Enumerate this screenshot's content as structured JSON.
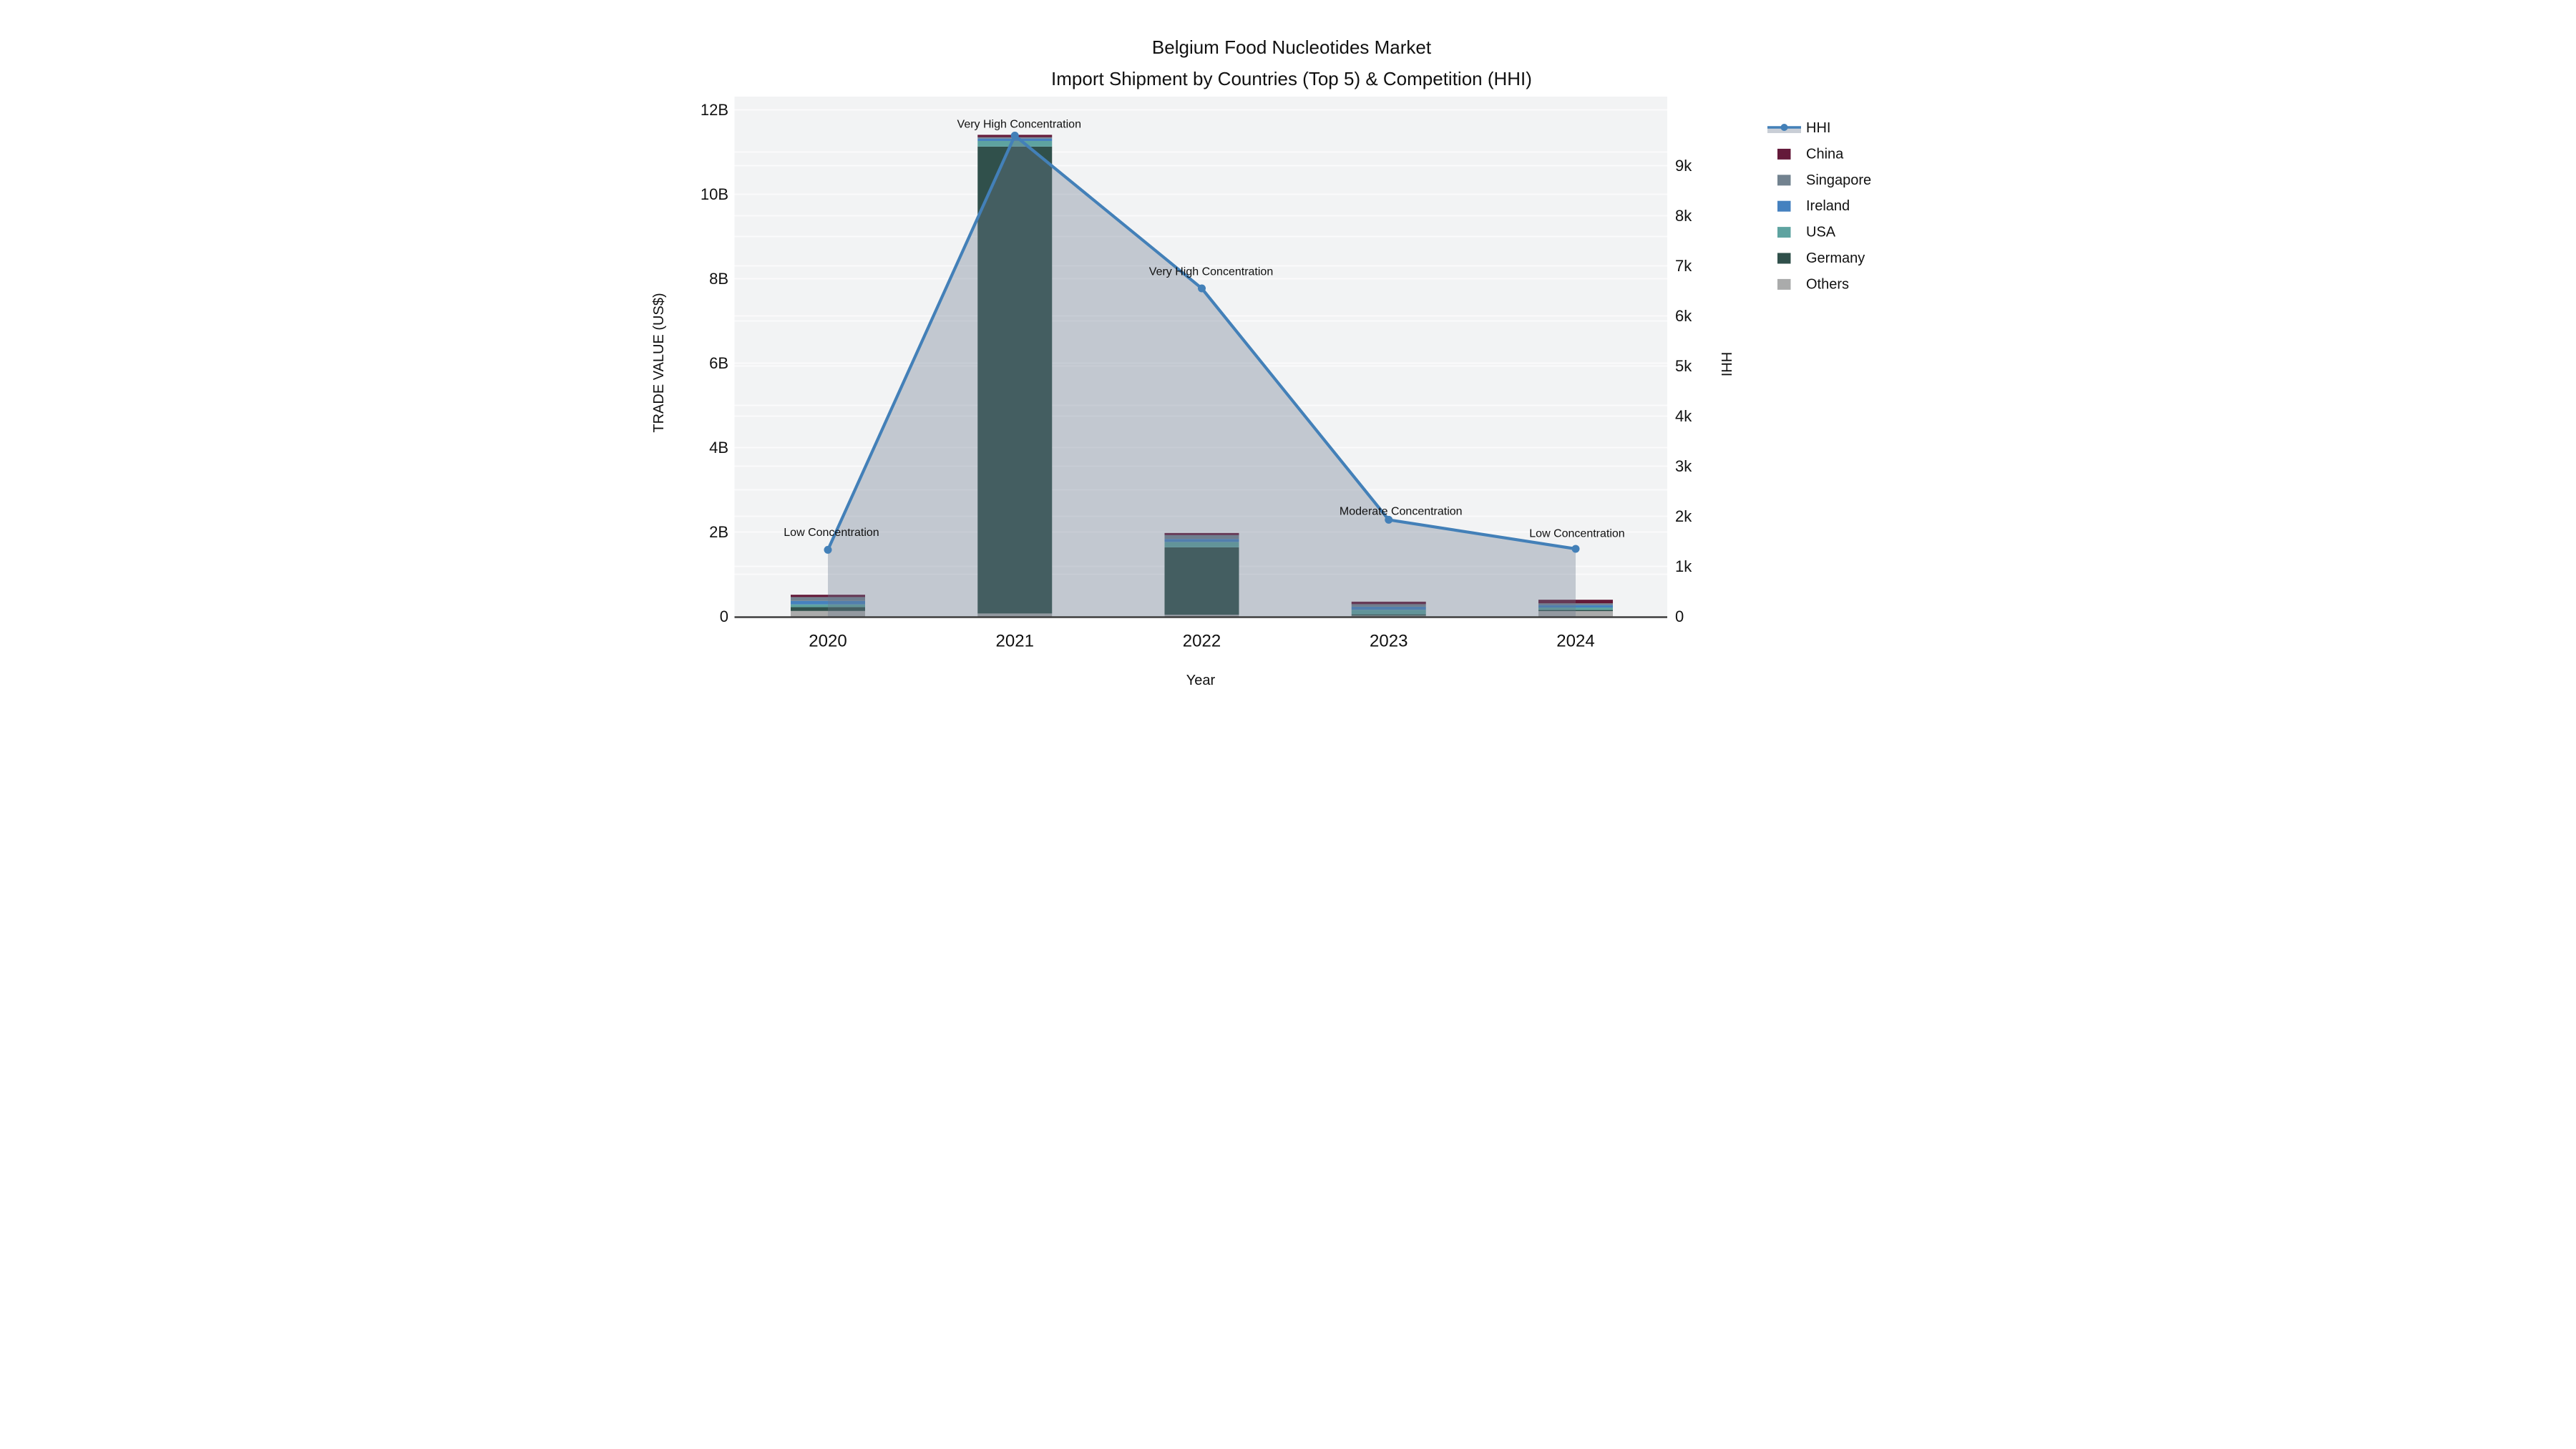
{
  "chart_data": {
    "type": [
      "bar",
      "line"
    ],
    "title_line1": "Belgium Food Nucleotides Market",
    "title_line2": "Import Shipment by Countries (Top 5) & Competition (HHI)",
    "xlabel": "Year",
    "ylabel_left": "TRADE VALUE (US$)",
    "ylabel_right": "HHI",
    "categories": [
      "2020",
      "2021",
      "2022",
      "2023",
      "2024"
    ],
    "bar_unit": "billion US$",
    "bar_series_bottom_to_top": [
      {
        "name": "Others",
        "color": "#aaabab",
        "values": [
          0.13,
          0.07,
          0.042,
          0.02,
          0.127
        ]
      },
      {
        "name": "Germany",
        "color": "#30504b",
        "values": [
          0.09,
          11.06,
          1.596,
          0.029,
          0.028
        ]
      },
      {
        "name": "USA",
        "color": "#5ea3a0",
        "values": [
          0.066,
          0.133,
          0.127,
          0.109,
          0.057
        ]
      },
      {
        "name": "Ireland",
        "color": "#4581bf",
        "values": [
          0.083,
          0.056,
          0.071,
          0.072,
          0.057
        ]
      },
      {
        "name": "Singapore",
        "color": "#72828f",
        "values": [
          0.09,
          0.033,
          0.09,
          0.06,
          0.042
        ]
      },
      {
        "name": "China",
        "color": "#641a3a",
        "values": [
          0.055,
          0.056,
          0.051,
          0.06,
          0.085
        ]
      }
    ],
    "line_series": {
      "name": "HHI",
      "color": "#4380b8",
      "fill_color": "rgba(106,120,140,0.35)",
      "values": [
        1330,
        9600,
        6550,
        1930,
        1350
      ]
    },
    "annotations": [
      {
        "year": "2020",
        "text": "Low Concentration"
      },
      {
        "year": "2021",
        "text": "Very High Concentration"
      },
      {
        "year": "2022",
        "text": "Very High Concentration"
      },
      {
        "year": "2023",
        "text": "Moderate Concentration"
      },
      {
        "year": "2024",
        "text": "Low Concentration"
      }
    ],
    "left_axis": {
      "ticks": [
        {
          "label": "0",
          "value": 0
        },
        {
          "label": "2B",
          "value": 2
        },
        {
          "label": "4B",
          "value": 4
        },
        {
          "label": "6B",
          "value": 6
        },
        {
          "label": "8B",
          "value": 8
        },
        {
          "label": "10B",
          "value": 10
        },
        {
          "label": "12B",
          "value": 12
        }
      ],
      "grid_max": 12,
      "grid_step": 1
    },
    "right_axis": {
      "ticks": [
        {
          "label": "0",
          "value": 0
        },
        {
          "label": "1k",
          "value": 1000
        },
        {
          "label": "2k",
          "value": 2000
        },
        {
          "label": "3k",
          "value": 3000
        },
        {
          "label": "4k",
          "value": 4000
        },
        {
          "label": "5k",
          "value": 5000
        },
        {
          "label": "6k",
          "value": 6000
        },
        {
          "label": "7k",
          "value": 7000
        },
        {
          "label": "8k",
          "value": 8000
        },
        {
          "label": "9k",
          "value": 9000
        }
      ],
      "grid_max": 9000,
      "grid_step": 1000
    },
    "legend": [
      {
        "label": "HHI",
        "color": "#4380b8",
        "glyph": "line",
        "band_color": "#c9ced6"
      },
      {
        "label": "China",
        "color": "#641a3a",
        "glyph": "swatch"
      },
      {
        "label": "Singapore",
        "color": "#72828f",
        "glyph": "swatch"
      },
      {
        "label": "Ireland",
        "color": "#4581bf",
        "glyph": "swatch"
      },
      {
        "label": "USA",
        "color": "#5ea3a0",
        "glyph": "swatch"
      },
      {
        "label": "Germany",
        "color": "#30504b",
        "glyph": "swatch"
      },
      {
        "label": "Others",
        "color": "#aaabab",
        "glyph": "swatch"
      }
    ],
    "colors": {
      "plot_bg": "#f2f3f4",
      "grid": "#fbfbfc",
      "axis_line": "#3d3d3d",
      "text": "#111111"
    }
  }
}
